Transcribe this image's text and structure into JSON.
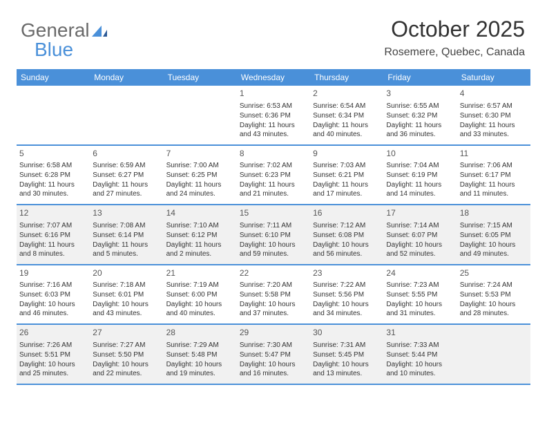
{
  "logo": {
    "part1": "General",
    "part2": "Blue"
  },
  "header": {
    "title": "October 2025",
    "location": "Rosemere, Quebec, Canada"
  },
  "colors": {
    "header_bg": "#4a90d9",
    "header_text": "#ffffff",
    "shaded_bg": "#f1f1f1",
    "text": "#333333",
    "border": "#4a90d9",
    "logo_gray": "#6a6a6a",
    "logo_blue": "#4a90d9"
  },
  "weekdays": [
    "Sunday",
    "Monday",
    "Tuesday",
    "Wednesday",
    "Thursday",
    "Friday",
    "Saturday"
  ],
  "weeks": [
    [
      {
        "day": "",
        "sunrise": "",
        "sunset": "",
        "daylight": ""
      },
      {
        "day": "",
        "sunrise": "",
        "sunset": "",
        "daylight": ""
      },
      {
        "day": "",
        "sunrise": "",
        "sunset": "",
        "daylight": ""
      },
      {
        "day": "1",
        "sunrise": "Sunrise: 6:53 AM",
        "sunset": "Sunset: 6:36 PM",
        "daylight": "Daylight: 11 hours and 43 minutes."
      },
      {
        "day": "2",
        "sunrise": "Sunrise: 6:54 AM",
        "sunset": "Sunset: 6:34 PM",
        "daylight": "Daylight: 11 hours and 40 minutes."
      },
      {
        "day": "3",
        "sunrise": "Sunrise: 6:55 AM",
        "sunset": "Sunset: 6:32 PM",
        "daylight": "Daylight: 11 hours and 36 minutes."
      },
      {
        "day": "4",
        "sunrise": "Sunrise: 6:57 AM",
        "sunset": "Sunset: 6:30 PM",
        "daylight": "Daylight: 11 hours and 33 minutes."
      }
    ],
    [
      {
        "day": "5",
        "sunrise": "Sunrise: 6:58 AM",
        "sunset": "Sunset: 6:28 PM",
        "daylight": "Daylight: 11 hours and 30 minutes."
      },
      {
        "day": "6",
        "sunrise": "Sunrise: 6:59 AM",
        "sunset": "Sunset: 6:27 PM",
        "daylight": "Daylight: 11 hours and 27 minutes."
      },
      {
        "day": "7",
        "sunrise": "Sunrise: 7:00 AM",
        "sunset": "Sunset: 6:25 PM",
        "daylight": "Daylight: 11 hours and 24 minutes."
      },
      {
        "day": "8",
        "sunrise": "Sunrise: 7:02 AM",
        "sunset": "Sunset: 6:23 PM",
        "daylight": "Daylight: 11 hours and 21 minutes."
      },
      {
        "day": "9",
        "sunrise": "Sunrise: 7:03 AM",
        "sunset": "Sunset: 6:21 PM",
        "daylight": "Daylight: 11 hours and 17 minutes."
      },
      {
        "day": "10",
        "sunrise": "Sunrise: 7:04 AM",
        "sunset": "Sunset: 6:19 PM",
        "daylight": "Daylight: 11 hours and 14 minutes."
      },
      {
        "day": "11",
        "sunrise": "Sunrise: 7:06 AM",
        "sunset": "Sunset: 6:17 PM",
        "daylight": "Daylight: 11 hours and 11 minutes."
      }
    ],
    [
      {
        "day": "12",
        "sunrise": "Sunrise: 7:07 AM",
        "sunset": "Sunset: 6:16 PM",
        "daylight": "Daylight: 11 hours and 8 minutes."
      },
      {
        "day": "13",
        "sunrise": "Sunrise: 7:08 AM",
        "sunset": "Sunset: 6:14 PM",
        "daylight": "Daylight: 11 hours and 5 minutes."
      },
      {
        "day": "14",
        "sunrise": "Sunrise: 7:10 AM",
        "sunset": "Sunset: 6:12 PM",
        "daylight": "Daylight: 11 hours and 2 minutes."
      },
      {
        "day": "15",
        "sunrise": "Sunrise: 7:11 AM",
        "sunset": "Sunset: 6:10 PM",
        "daylight": "Daylight: 10 hours and 59 minutes."
      },
      {
        "day": "16",
        "sunrise": "Sunrise: 7:12 AM",
        "sunset": "Sunset: 6:08 PM",
        "daylight": "Daylight: 10 hours and 56 minutes."
      },
      {
        "day": "17",
        "sunrise": "Sunrise: 7:14 AM",
        "sunset": "Sunset: 6:07 PM",
        "daylight": "Daylight: 10 hours and 52 minutes."
      },
      {
        "day": "18",
        "sunrise": "Sunrise: 7:15 AM",
        "sunset": "Sunset: 6:05 PM",
        "daylight": "Daylight: 10 hours and 49 minutes."
      }
    ],
    [
      {
        "day": "19",
        "sunrise": "Sunrise: 7:16 AM",
        "sunset": "Sunset: 6:03 PM",
        "daylight": "Daylight: 10 hours and 46 minutes."
      },
      {
        "day": "20",
        "sunrise": "Sunrise: 7:18 AM",
        "sunset": "Sunset: 6:01 PM",
        "daylight": "Daylight: 10 hours and 43 minutes."
      },
      {
        "day": "21",
        "sunrise": "Sunrise: 7:19 AM",
        "sunset": "Sunset: 6:00 PM",
        "daylight": "Daylight: 10 hours and 40 minutes."
      },
      {
        "day": "22",
        "sunrise": "Sunrise: 7:20 AM",
        "sunset": "Sunset: 5:58 PM",
        "daylight": "Daylight: 10 hours and 37 minutes."
      },
      {
        "day": "23",
        "sunrise": "Sunrise: 7:22 AM",
        "sunset": "Sunset: 5:56 PM",
        "daylight": "Daylight: 10 hours and 34 minutes."
      },
      {
        "day": "24",
        "sunrise": "Sunrise: 7:23 AM",
        "sunset": "Sunset: 5:55 PM",
        "daylight": "Daylight: 10 hours and 31 minutes."
      },
      {
        "day": "25",
        "sunrise": "Sunrise: 7:24 AM",
        "sunset": "Sunset: 5:53 PM",
        "daylight": "Daylight: 10 hours and 28 minutes."
      }
    ],
    [
      {
        "day": "26",
        "sunrise": "Sunrise: 7:26 AM",
        "sunset": "Sunset: 5:51 PM",
        "daylight": "Daylight: 10 hours and 25 minutes."
      },
      {
        "day": "27",
        "sunrise": "Sunrise: 7:27 AM",
        "sunset": "Sunset: 5:50 PM",
        "daylight": "Daylight: 10 hours and 22 minutes."
      },
      {
        "day": "28",
        "sunrise": "Sunrise: 7:29 AM",
        "sunset": "Sunset: 5:48 PM",
        "daylight": "Daylight: 10 hours and 19 minutes."
      },
      {
        "day": "29",
        "sunrise": "Sunrise: 7:30 AM",
        "sunset": "Sunset: 5:47 PM",
        "daylight": "Daylight: 10 hours and 16 minutes."
      },
      {
        "day": "30",
        "sunrise": "Sunrise: 7:31 AM",
        "sunset": "Sunset: 5:45 PM",
        "daylight": "Daylight: 10 hours and 13 minutes."
      },
      {
        "day": "31",
        "sunrise": "Sunrise: 7:33 AM",
        "sunset": "Sunset: 5:44 PM",
        "daylight": "Daylight: 10 hours and 10 minutes."
      },
      {
        "day": "",
        "sunrise": "",
        "sunset": "",
        "daylight": ""
      }
    ]
  ],
  "shaded_weeks": [
    2,
    4
  ]
}
